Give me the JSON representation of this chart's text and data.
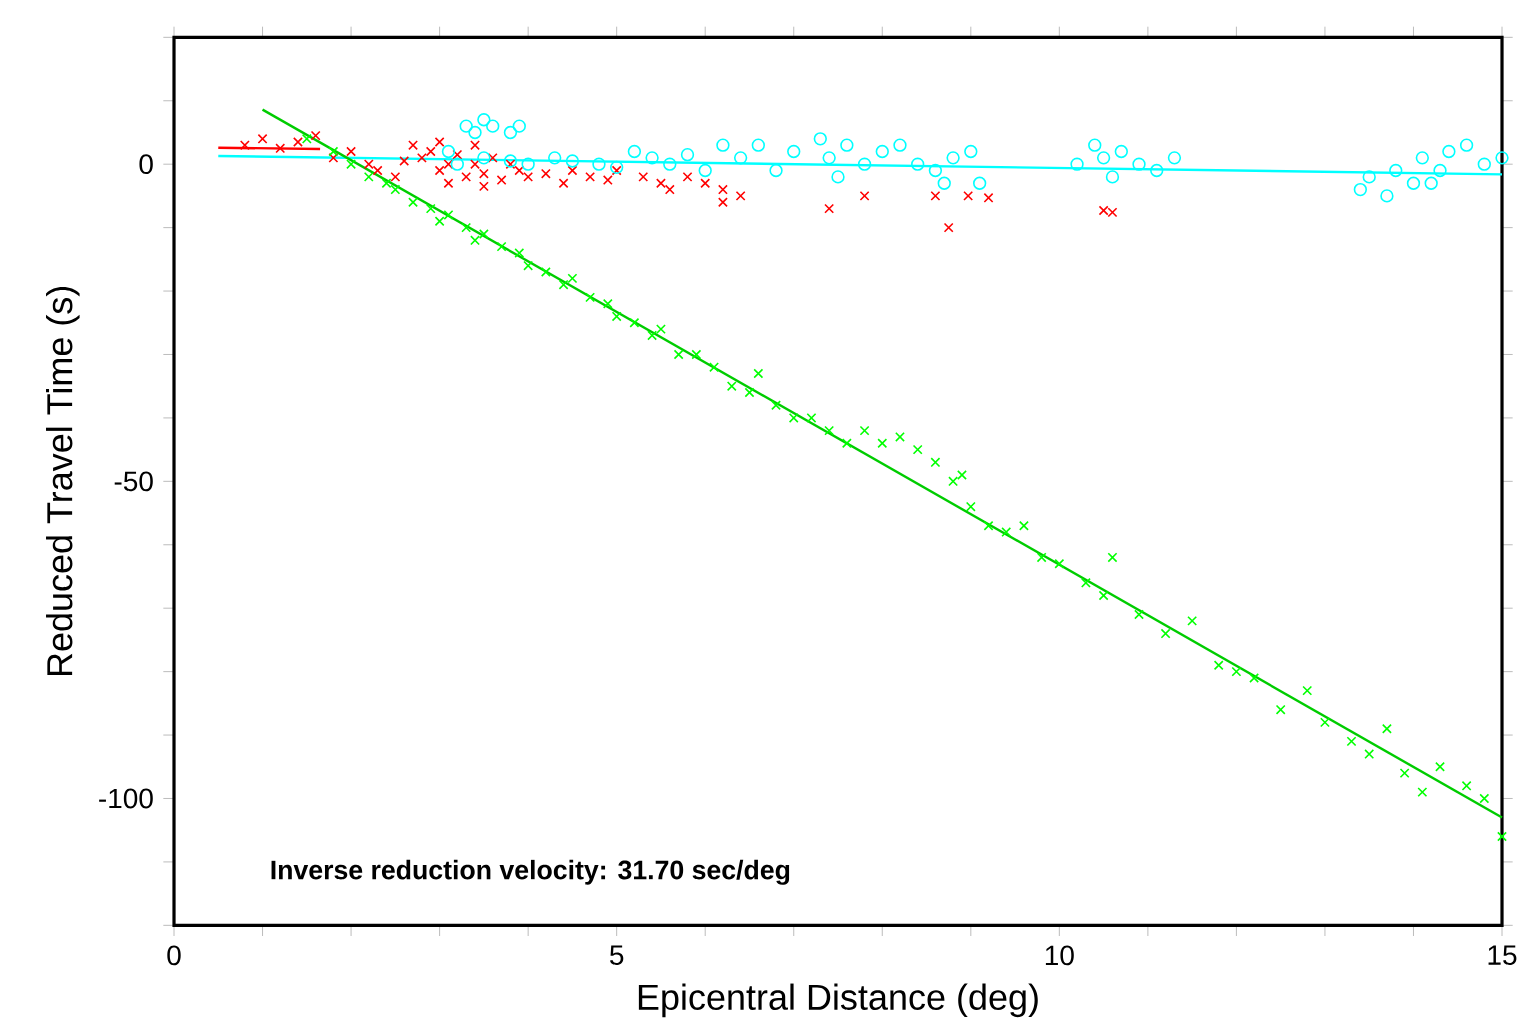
{
  "chart_data": {
    "type": "scatter",
    "xlabel": "Epicentral Distance (deg)",
    "ylabel": "Reduced Travel Time (s)",
    "xlim": [
      0,
      15
    ],
    "ylim": [
      -120,
      20
    ],
    "xticks": [
      0,
      {
        "value": 1,
        "label": null
      },
      {
        "value": 2,
        "label": null
      },
      {
        "value": 3,
        "label": null
      },
      {
        "value": 4,
        "label": null
      },
      5,
      {
        "value": 6,
        "label": null
      },
      {
        "value": 7,
        "label": null
      },
      {
        "value": 8,
        "label": null
      },
      {
        "value": 9,
        "label": null
      },
      10,
      {
        "value": 11,
        "label": null
      },
      {
        "value": 12,
        "label": null
      },
      {
        "value": 13,
        "label": null
      },
      {
        "value": 14,
        "label": null
      },
      15
    ],
    "yticks": [
      {
        "value": -120,
        "label": null
      },
      {
        "value": -110,
        "label": null
      },
      -100,
      {
        "value": -90,
        "label": null
      },
      {
        "value": -80,
        "label": null
      },
      {
        "value": -70,
        "label": null
      },
      {
        "value": -60,
        "label": null
      },
      -50,
      {
        "value": -40,
        "label": null
      },
      {
        "value": -30,
        "label": null
      },
      {
        "value": -20,
        "label": null
      },
      {
        "value": -10,
        "label": null
      },
      0,
      {
        "value": 10,
        "label": null
      },
      {
        "value": 20,
        "label": null
      }
    ],
    "annotations": [
      "Inverse reduction velocity: 31.70 sec/deg"
    ],
    "series": [
      {
        "marker": "cross",
        "color": "#ff0000",
        "x": [
          0.8,
          1.0,
          1.2,
          1.4,
          1.6,
          1.8,
          2.0,
          2.2,
          2.3,
          2.5,
          2.6,
          2.7,
          2.8,
          2.9,
          3.0,
          3.0,
          3.1,
          3.1,
          3.2,
          3.3,
          3.4,
          3.4,
          3.5,
          3.5,
          3.6,
          3.7,
          3.8,
          3.9,
          4.0,
          4.2,
          4.4,
          4.5,
          4.7,
          4.9,
          5.0,
          5.3,
          5.5,
          5.6,
          5.8,
          6.0,
          6.2,
          6.2,
          6.4,
          7.4,
          7.8,
          8.6,
          8.75,
          8.97,
          9.2,
          10.5,
          10.6
        ],
        "values": [
          3,
          4,
          2.5,
          3.5,
          4.5,
          1,
          2,
          0,
          -1,
          -2,
          0.5,
          3,
          1,
          2,
          -1,
          3.5,
          0,
          -3,
          1.5,
          -2,
          0,
          3,
          -1.5,
          -3.5,
          1,
          -2.5,
          0,
          -1,
          -2,
          -1.5,
          -3,
          -1,
          -2,
          -2.5,
          -1,
          -2,
          -3,
          -4,
          -2,
          -3,
          -4,
          -6,
          -5,
          -7,
          -5,
          -5,
          -10,
          -5,
          -5.3,
          -7.3,
          -7.6
        ]
      },
      {
        "marker": "circle",
        "color": "#00ffff",
        "x": [
          3.1,
          3.2,
          3.3,
          3.4,
          3.5,
          3.5,
          3.6,
          3.8,
          3.8,
          3.9,
          4.0,
          4.3,
          4.5,
          4.8,
          5.0,
          5.2,
          5.4,
          5.6,
          5.8,
          6.0,
          6.2,
          6.4,
          6.6,
          6.8,
          7.0,
          7.3,
          7.4,
          7.5,
          7.6,
          7.8,
          8.0,
          8.2,
          8.4,
          8.6,
          8.7,
          8.8,
          9.0,
          9.1,
          10.2,
          10.4,
          10.5,
          10.6,
          10.7,
          10.9,
          11.1,
          11.3,
          13.4,
          13.5,
          13.7,
          13.8,
          14.0,
          14.1,
          14.2,
          14.3,
          14.4,
          14.6,
          14.8,
          15.0
        ],
        "values": [
          2,
          0,
          6,
          5,
          7,
          1,
          6,
          5,
          0.5,
          6,
          0,
          1,
          0.5,
          0,
          -0.5,
          2,
          1,
          0,
          1.5,
          -1,
          3,
          1,
          3,
          -1,
          2,
          4,
          1,
          -2,
          3,
          0,
          2,
          3,
          0,
          -1,
          -3,
          1,
          2,
          -3,
          0,
          3,
          1,
          -2,
          2,
          0,
          -1,
          1,
          -4,
          -2,
          -5,
          -1,
          -3,
          1,
          -3,
          -1,
          2,
          3,
          0,
          1
        ]
      },
      {
        "marker": "cross",
        "color": "#00ff00",
        "x": [
          1.5,
          1.8,
          2.0,
          2.2,
          2.4,
          2.5,
          2.7,
          2.9,
          3.0,
          3.1,
          3.3,
          3.4,
          3.5,
          3.7,
          3.9,
          4.0,
          4.2,
          4.4,
          4.5,
          4.7,
          4.9,
          5.0,
          5.2,
          5.4,
          5.5,
          5.7,
          5.9,
          6.1,
          6.3,
          6.5,
          6.6,
          6.8,
          7.0,
          7.2,
          7.4,
          7.6,
          7.8,
          8.0,
          8.2,
          8.4,
          8.6,
          8.8,
          8.9,
          9.0,
          9.2,
          9.4,
          9.6,
          9.8,
          10.0,
          10.3,
          10.5,
          10.6,
          10.9,
          11.2,
          11.5,
          11.8,
          12.0,
          12.2,
          12.5,
          12.8,
          13.0,
          13.3,
          13.5,
          13.7,
          13.9,
          14.1,
          14.3,
          14.6,
          14.8,
          15.0
        ],
        "values": [
          4,
          2,
          0,
          -2,
          -3,
          -4,
          -6,
          -7,
          -9,
          -8,
          -10,
          -12,
          -11,
          -13,
          -14,
          -16,
          -17,
          -19,
          -18,
          -21,
          -22,
          -24,
          -25,
          -27,
          -26,
          -30,
          -30,
          -32,
          -35,
          -36,
          -33,
          -38,
          -40,
          -40,
          -42,
          -44,
          -42,
          -44,
          -43,
          -45,
          -47,
          -50,
          -49,
          -54,
          -57,
          -58,
          -57,
          -62,
          -63,
          -66,
          -68,
          -62,
          -71,
          -74,
          -72,
          -79,
          -80,
          -81,
          -86,
          -83,
          -88,
          -91,
          -93,
          -89,
          -96,
          -99,
          -95,
          -98,
          -100,
          -106
        ]
      },
      {
        "type": "line",
        "color": "#ff0000",
        "x": [
          0.5,
          1.65
        ],
        "values": [
          2.6,
          2.4
        ]
      },
      {
        "type": "line",
        "color": "#00ffff",
        "x": [
          0.5,
          15
        ],
        "values": [
          1.3,
          -1.6
        ]
      },
      {
        "type": "line",
        "color": "#00cc00",
        "x": [
          1.0,
          15
        ],
        "values": [
          8.6,
          -103
        ]
      }
    ]
  }
}
